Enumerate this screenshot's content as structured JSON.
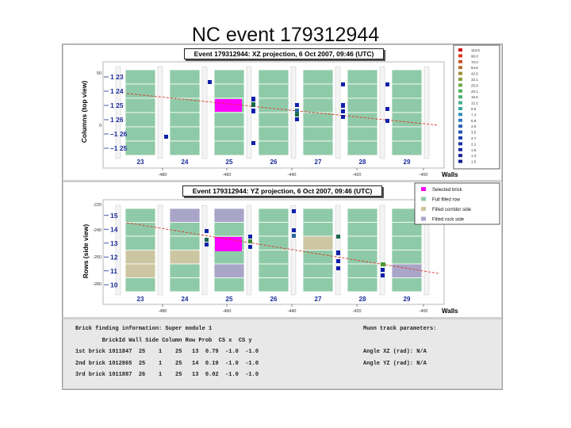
{
  "page_title": "NC  event 179312944",
  "top_panel": {
    "title": "Event 179312944: XZ projection,  6 Oct 2007, 09:46 (UTC)",
    "ylabel": "Columns (top view)",
    "row_labels": [
      "1 23",
      "1 24",
      "1 25",
      "1 26",
      "–1 26",
      "–1 25"
    ],
    "y_ticks": [
      "50",
      "0"
    ],
    "wall_numbers": [
      "23",
      "24",
      "25",
      "26",
      "27",
      "28",
      "29"
    ],
    "x_ticks": [
      "-480",
      "-460",
      "-440",
      "-420",
      "-400"
    ],
    "xlabel": "Walls"
  },
  "bottom_panel": {
    "title": "Event 179312944: YZ projection,  6 Oct 2007, 09:46 (UTC)",
    "ylabel": "Rows (side view)",
    "row_labels": [
      "15",
      "14",
      "13",
      "12",
      "11",
      "10"
    ],
    "y_ticks": [
      "-220",
      "-240",
      "-260",
      "-280"
    ],
    "wall_numbers": [
      "23",
      "24",
      "25",
      "26",
      "27",
      "28",
      "29"
    ],
    "x_ticks": [
      "-480",
      "-460",
      "-440",
      "-420",
      "-400"
    ],
    "xlabel": "Walls"
  },
  "energy_legend": {
    "values": [
      "113.6",
      "90.0",
      "70.0",
      "54.6",
      "42.5",
      "33.1",
      "25.8",
      "20.1",
      "15.6",
      "12.2",
      "9.5",
      "7.4",
      "5.8",
      "4.5",
      "3.5",
      "2.7",
      "2.1",
      "1.6",
      "1.3",
      "1.0"
    ],
    "colors": [
      "#cc1111",
      "#d83a20",
      "#c8502a",
      "#b97030",
      "#9f8a35",
      "#8aa040",
      "#6aaa48",
      "#4eaf55",
      "#46b070",
      "#3fae8c",
      "#3aa6a6",
      "#3590b5",
      "#2d78b8",
      "#2860b5",
      "#2450b0",
      "#2040aa",
      "#1c32a4",
      "#18289e",
      "#142098",
      "#101890"
    ]
  },
  "brick_legend": {
    "items": [
      {
        "label": "Selected brick",
        "color": "#ff00ff"
      },
      {
        "label": "Full filled row",
        "color": "#8fcaa8"
      },
      {
        "label": "Filled corridor side",
        "color": "#cdc6a2"
      },
      {
        "label": "Filled rock side",
        "color": "#a9a5c9"
      }
    ]
  },
  "brick_info": {
    "heading": "Brick finding information: Super module 1",
    "columns": "        BrickId Wall Side Column Row Prob  CS x  CS y",
    "rows": [
      "1st brick 1011847  25    1    25   13  0.79  -1.0  -1.0",
      "2nd brick 1012865  25    1    25   14  0.19  -1.0  -1.0",
      "3rd brick 1011887  26    1    25   13  0.02  -1.0  -1.0"
    ],
    "muon_heading": "Muon track parameters:",
    "muon_rows": [
      "Angle XZ (rad): N/A",
      "Angle YZ (rad): N/A"
    ]
  },
  "colors": {
    "wall_green": "#8fcaa8",
    "selected_brick": "#ff00ff",
    "hit_blue": "#1020aa",
    "track_red": "#dd3322"
  }
}
